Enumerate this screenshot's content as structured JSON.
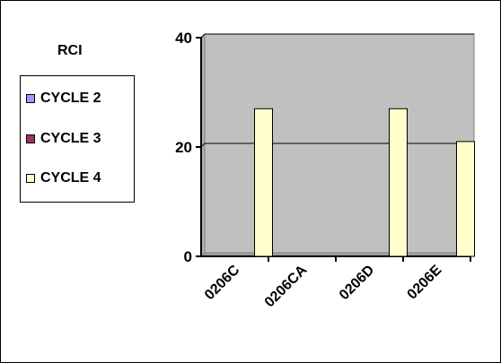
{
  "chart_data": {
    "type": "bar",
    "title": "",
    "legend_title": "RCI",
    "categories": [
      "0206C",
      "0206CA",
      "0206D",
      "0206E"
    ],
    "series": [
      {
        "name": "CYCLE 2",
        "color": "#9999ff",
        "values": [
          0,
          0,
          0,
          0
        ]
      },
      {
        "name": "CYCLE 3",
        "color": "#993366",
        "values": [
          0,
          0,
          0,
          0
        ]
      },
      {
        "name": "CYCLE 4",
        "color": "#ffffcc",
        "values": [
          27,
          0,
          27,
          21
        ]
      }
    ],
    "yticks": [
      "0",
      "20",
      "40"
    ],
    "ylim": [
      0,
      40
    ],
    "grid": true,
    "legend_position": "left",
    "plot_background": "#c0c0c0"
  }
}
